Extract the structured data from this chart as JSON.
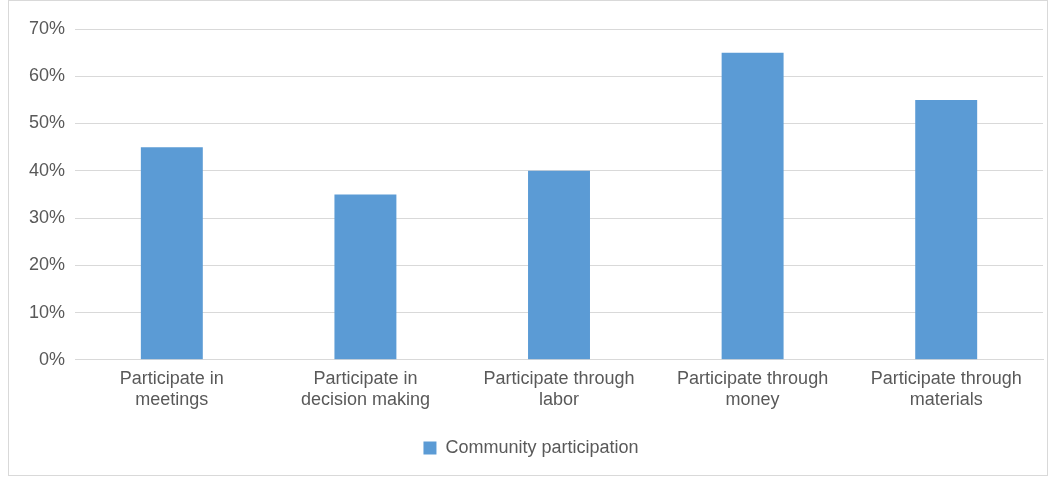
{
  "chart_data": {
    "type": "bar",
    "categories": [
      "Participate in meetings",
      "Participate in decision making",
      "Participate through labor",
      "Participate through money",
      "Participate through materials"
    ],
    "series": [
      {
        "name": "Community participation",
        "color": "#5b9bd5",
        "values": [
          45,
          35,
          40,
          65,
          55
        ]
      }
    ],
    "ylim": [
      0,
      70
    ],
    "yticks": [
      {
        "value": 0,
        "label": "0%"
      },
      {
        "value": 10,
        "label": "10%"
      },
      {
        "value": 20,
        "label": "20%"
      },
      {
        "value": 30,
        "label": "30%"
      },
      {
        "value": 40,
        "label": "40%"
      },
      {
        "value": 50,
        "label": "50%"
      },
      {
        "value": 60,
        "label": "60%"
      },
      {
        "value": 70,
        "label": "70%"
      }
    ],
    "grid": "y",
    "legend": "bottom"
  }
}
